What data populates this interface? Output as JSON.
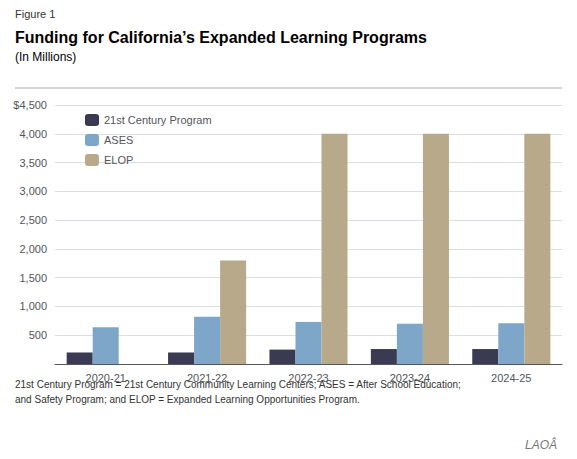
{
  "chart_data": {
    "type": "bar",
    "title": "Funding for California’s Expanded Learning Programs",
    "subtitle": "(In Millions)",
    "annotations": [
      "Figure 1",
      "21st Century Program = 21st Century Community Learning Centers; ASES = After School Education;",
      "and Safety Program; and ELOP = Expanded Learning Opportunities Program.",
      "LAOÂ"
    ],
    "categories": [
      "2020-21",
      "2021-22",
      "2022-23",
      "2023-24",
      "2024-25"
    ],
    "series": [
      {
        "name": "21st Century Program",
        "color": "#3a3a52",
        "values": [
          200,
          200,
          250,
          260,
          260
        ]
      },
      {
        "name": "ASES",
        "color": "#7da6c8",
        "values": [
          640,
          820,
          730,
          700,
          710
        ]
      },
      {
        "name": "ELOP",
        "color": "#b8a98a",
        "values": [
          0,
          1800,
          4000,
          4000,
          4000
        ]
      }
    ],
    "ylim": [
      0,
      4500
    ],
    "yticks": [
      {
        "value": 0,
        "label": ""
      },
      500,
      {
        "value": 1000,
        "label": "1,000"
      },
      {
        "value": 1500,
        "label": "1,500"
      },
      {
        "value": 2000,
        "label": "2,000"
      },
      {
        "value": 2500,
        "label": "2,500"
      },
      {
        "value": 3000,
        "label": "3,000"
      },
      {
        "value": 3500,
        "label": "3,500"
      },
      {
        "value": 4000,
        "label": "4,000"
      },
      {
        "value": 4500,
        "label": "$4,500"
      }
    ],
    "grid": true,
    "legend": "upper left"
  }
}
